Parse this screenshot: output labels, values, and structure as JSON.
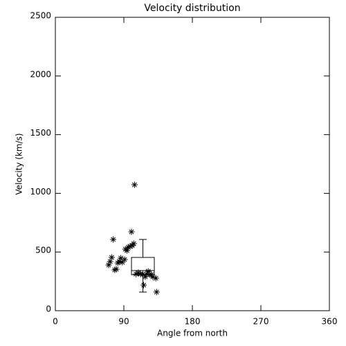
{
  "chart_data": {
    "type": "scatter",
    "title": "Velocity distribution",
    "x_label": "Angle from north",
    "y_label": "Velocity (km/s)",
    "xlim": [
      0,
      360
    ],
    "xticks": [
      0,
      90,
      180,
      270,
      360
    ],
    "ylim": [
      0,
      2500
    ],
    "yticks": [
      0,
      500,
      1000,
      1500,
      2000,
      2500
    ],
    "color": "#000000",
    "x": [
      70,
      72,
      74,
      76,
      78,
      80,
      82,
      84,
      86,
      88,
      91,
      92,
      94,
      96,
      98,
      100,
      101,
      103,
      104,
      106,
      109,
      112,
      115,
      116,
      118,
      120,
      122,
      124,
      126,
      128,
      132,
      133
    ],
    "values": [
      389,
      419,
      454,
      607,
      348,
      354,
      407,
      419,
      448,
      413,
      436,
      525,
      513,
      542,
      548,
      672,
      554,
      572,
      1073,
      312,
      324,
      312,
      312,
      218,
      289,
      312,
      336,
      307,
      307,
      289,
      277,
      159
    ],
    "box": {
      "x": 115,
      "width": 30,
      "whislo": 159,
      "q1": 307,
      "median": 342,
      "q3": 454,
      "whishi": 607
    }
  }
}
